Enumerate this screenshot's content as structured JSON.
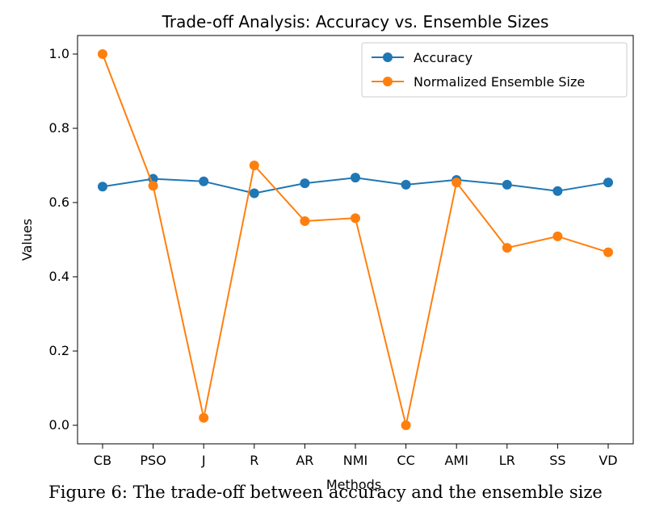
{
  "chart_data": {
    "type": "line",
    "title": "Trade-off Analysis: Accuracy vs. Ensemble Sizes",
    "xlabel": "Methods",
    "ylabel": "Values",
    "categories": [
      "CB",
      "PSO",
      "J",
      "R",
      "AR",
      "NMI",
      "CC",
      "AMI",
      "LR",
      "SS",
      "VD"
    ],
    "ylim": [
      -0.05,
      1.05
    ],
    "yticks": [
      0.0,
      0.2,
      0.4,
      0.6,
      0.8,
      1.0
    ],
    "ytick_labels": [
      "0.0",
      "0.2",
      "0.4",
      "0.6",
      "0.8",
      "1.0"
    ],
    "grid": false,
    "legend_placement": "top-right",
    "series": [
      {
        "name": "Accuracy",
        "color": "#1f77b4",
        "marker": "circle",
        "values": [
          0.643,
          0.664,
          0.657,
          0.625,
          0.652,
          0.667,
          0.648,
          0.661,
          0.648,
          0.631,
          0.654
        ]
      },
      {
        "name": "Normalized Ensemble Size",
        "color": "#ff7f0e",
        "marker": "circle",
        "values": [
          1.0,
          0.645,
          0.02,
          0.7,
          0.55,
          0.558,
          0.0,
          0.654,
          0.478,
          0.509,
          0.466
        ]
      }
    ]
  },
  "caption": "Figure 6: The trade-off between accuracy and the ensemble size"
}
